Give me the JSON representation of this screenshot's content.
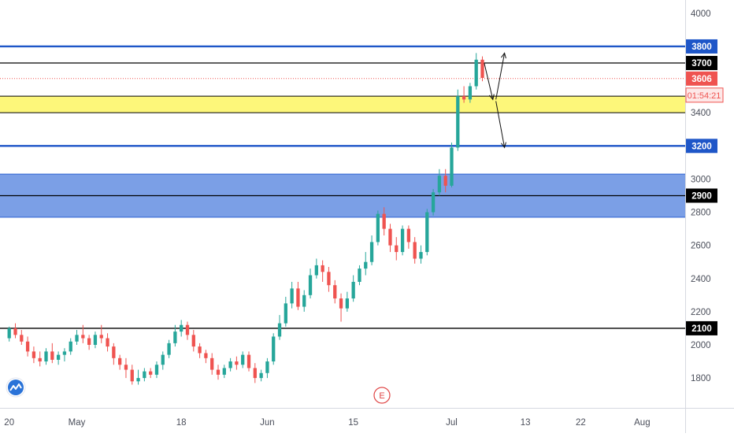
{
  "chart_data": {
    "type": "candlestick",
    "ylim": [
      1620,
      4080
    ],
    "price_axis_ticks": [
      1800,
      2000,
      2200,
      2400,
      2600,
      2800,
      3000,
      3400,
      4000
    ],
    "time_axis": [
      {
        "label": "20",
        "day": 0
      },
      {
        "label": "May",
        "day": 11
      },
      {
        "label": "18",
        "day": 28
      },
      {
        "label": "Jun",
        "day": 42
      },
      {
        "label": "15",
        "day": 56
      },
      {
        "label": "Jul",
        "day": 72
      },
      {
        "label": "13",
        "day": 84
      },
      {
        "label": "22",
        "day": 93
      },
      {
        "label": "Aug",
        "day": 103
      }
    ],
    "x_day_range": [
      -1.5,
      110
    ],
    "horizontal_lines": [
      {
        "name": "level-3800",
        "label": "3800",
        "value": 3800,
        "color": "#1e56c8"
      },
      {
        "name": "level-3700",
        "label": "3700",
        "value": 3700,
        "color": "#000000"
      },
      {
        "name": "level-3200",
        "label": "3200",
        "value": 3200,
        "color": "#1e56c8"
      },
      {
        "name": "level-2900",
        "label": "2900",
        "value": 2900,
        "color": "#000000"
      },
      {
        "name": "level-2100",
        "label": "2100",
        "value": 2100,
        "color": "#000000"
      }
    ],
    "zones": [
      {
        "name": "yellow-zone",
        "from": 3400,
        "to": 3500,
        "fill": "#fdf77a",
        "border": "#000000"
      },
      {
        "name": "blue-zone",
        "from": 2770,
        "to": 3030,
        "fill": "#7b9fe6",
        "border": "#2d62d1"
      }
    ],
    "current_price": {
      "label": "3606",
      "value": 3606,
      "countdown": "01:54:21",
      "color": "#ef5350"
    },
    "arrows": [
      {
        "from": [
          77.3,
          3700
        ],
        "to": [
          78.7,
          3480
        ]
      },
      {
        "from": [
          79.2,
          3480
        ],
        "to": [
          80.6,
          3760
        ]
      },
      {
        "from": [
          79.2,
          3470
        ],
        "to": [
          80.6,
          3190
        ]
      }
    ],
    "candles": [
      [
        0,
        2040,
        2100,
        2110,
        2020
      ],
      [
        1,
        2100,
        2060,
        2130,
        2040
      ],
      [
        2,
        2060,
        2020,
        2090,
        2000
      ],
      [
        3,
        2020,
        1960,
        2050,
        1930
      ],
      [
        4,
        1960,
        1920,
        1990,
        1890
      ],
      [
        5,
        1920,
        1900,
        1960,
        1870
      ],
      [
        6,
        1900,
        1960,
        1980,
        1880
      ],
      [
        7,
        1960,
        1910,
        2010,
        1890
      ],
      [
        8,
        1910,
        1940,
        1960,
        1880
      ],
      [
        9,
        1940,
        1960,
        1980,
        1900
      ],
      [
        10,
        1960,
        2020,
        2040,
        1940
      ],
      [
        11,
        2020,
        2060,
        2090,
        2000
      ],
      [
        12,
        2060,
        2040,
        2120,
        2010
      ],
      [
        13,
        2040,
        2000,
        2060,
        1970
      ],
      [
        14,
        2000,
        2060,
        2080,
        1980
      ],
      [
        15,
        2060,
        2040,
        2120,
        2010
      ],
      [
        16,
        2040,
        1990,
        2070,
        1960
      ],
      [
        17,
        1990,
        1920,
        2010,
        1880
      ],
      [
        18,
        1920,
        1880,
        1940,
        1850
      ],
      [
        19,
        1880,
        1850,
        1920,
        1800
      ],
      [
        20,
        1850,
        1780,
        1880,
        1760
      ],
      [
        21,
        1780,
        1800,
        1850,
        1760
      ],
      [
        22,
        1800,
        1840,
        1860,
        1780
      ],
      [
        23,
        1840,
        1820,
        1860,
        1800
      ],
      [
        24,
        1820,
        1880,
        1900,
        1800
      ],
      [
        25,
        1880,
        1940,
        1960,
        1850
      ],
      [
        26,
        1940,
        2010,
        2030,
        1920
      ],
      [
        27,
        2010,
        2080,
        2120,
        1990
      ],
      [
        28,
        2080,
        2120,
        2150,
        2050
      ],
      [
        29,
        2120,
        2060,
        2140,
        2030
      ],
      [
        30,
        2060,
        1990,
        2090,
        1960
      ],
      [
        31,
        1990,
        1950,
        2010,
        1920
      ],
      [
        32,
        1950,
        1920,
        1970,
        1890
      ],
      [
        33,
        1920,
        1850,
        1950,
        1820
      ],
      [
        34,
        1850,
        1820,
        1880,
        1790
      ],
      [
        35,
        1820,
        1860,
        1880,
        1800
      ],
      [
        36,
        1860,
        1900,
        1920,
        1840
      ],
      [
        37,
        1900,
        1880,
        1930,
        1850
      ],
      [
        38,
        1880,
        1940,
        1960,
        1860
      ],
      [
        39,
        1940,
        1860,
        1960,
        1840
      ],
      [
        40,
        1860,
        1800,
        1890,
        1770
      ],
      [
        41,
        1800,
        1830,
        1850,
        1780
      ],
      [
        42,
        1830,
        1900,
        1920,
        1800
      ],
      [
        43,
        1900,
        2050,
        2070,
        1880
      ],
      [
        44,
        2050,
        2130,
        2180,
        2030
      ],
      [
        45,
        2130,
        2250,
        2290,
        2110
      ],
      [
        46,
        2250,
        2340,
        2380,
        2220
      ],
      [
        47,
        2340,
        2230,
        2380,
        2210
      ],
      [
        48,
        2230,
        2300,
        2330,
        2200
      ],
      [
        49,
        2300,
        2420,
        2460,
        2280
      ],
      [
        50,
        2420,
        2480,
        2520,
        2400
      ],
      [
        51,
        2480,
        2440,
        2510,
        2380
      ],
      [
        52,
        2440,
        2360,
        2470,
        2320
      ],
      [
        53,
        2360,
        2280,
        2390,
        2250
      ],
      [
        54,
        2280,
        2220,
        2310,
        2140
      ],
      [
        55,
        2220,
        2280,
        2320,
        2200
      ],
      [
        56,
        2280,
        2380,
        2420,
        2260
      ],
      [
        57,
        2380,
        2460,
        2480,
        2360
      ],
      [
        58,
        2460,
        2500,
        2560,
        2420
      ],
      [
        59,
        2500,
        2620,
        2660,
        2480
      ],
      [
        60,
        2620,
        2790,
        2810,
        2600
      ],
      [
        61,
        2790,
        2700,
        2830,
        2660
      ],
      [
        62,
        2700,
        2600,
        2730,
        2560
      ],
      [
        63,
        2600,
        2560,
        2650,
        2510
      ],
      [
        64,
        2560,
        2700,
        2720,
        2540
      ],
      [
        65,
        2700,
        2620,
        2720,
        2580
      ],
      [
        66,
        2620,
        2520,
        2650,
        2490
      ],
      [
        67,
        2520,
        2560,
        2600,
        2490
      ],
      [
        68,
        2560,
        2800,
        2820,
        2540
      ],
      [
        69,
        2800,
        2920,
        2940,
        2780
      ],
      [
        70,
        2920,
        3020,
        3060,
        2900
      ],
      [
        71,
        3020,
        2960,
        3060,
        2920
      ],
      [
        72,
        2960,
        3190,
        3220,
        2950
      ],
      [
        73,
        3190,
        3500,
        3540,
        3170
      ],
      [
        74,
        3500,
        3480,
        3560,
        3460
      ],
      [
        75,
        3480,
        3560,
        3580,
        3460
      ],
      [
        76,
        3560,
        3720,
        3760,
        3540
      ],
      [
        77,
        3720,
        3610,
        3740,
        3590
      ]
    ]
  }
}
